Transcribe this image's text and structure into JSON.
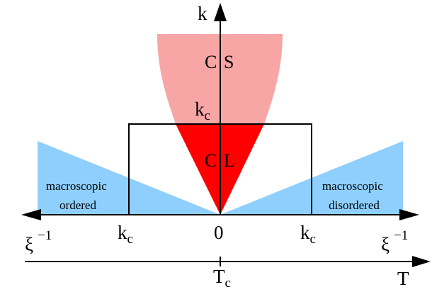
{
  "colors": {
    "cs_region": "#F8A5A5",
    "cl_region": "#FF0000",
    "macroscopic_region": "#8ECFFD",
    "lines": "#000000",
    "background": "#FFFFFF"
  },
  "labels": {
    "k_axis": "k",
    "kc_top_base": "k",
    "kc_sub": "c",
    "cs_c": "C",
    "cs_s": "S",
    "cl_c": "C",
    "cl_l": "L",
    "left_region_line1": "macroscopic",
    "left_region_line2": "ordered",
    "right_region_line1": "macroscopic",
    "right_region_line2": "disordered",
    "xi_left_base": "ξ",
    "xi_left_exp": "−1",
    "xi_right_base": "ξ",
    "xi_right_exp": "−1",
    "kc_left_base": "k",
    "kc_left_sub": "c",
    "zero": "0",
    "kc_right_base": "k",
    "kc_right_sub": "c",
    "tc_base": "T",
    "tc_sub": "c",
    "t_axis": "T"
  }
}
